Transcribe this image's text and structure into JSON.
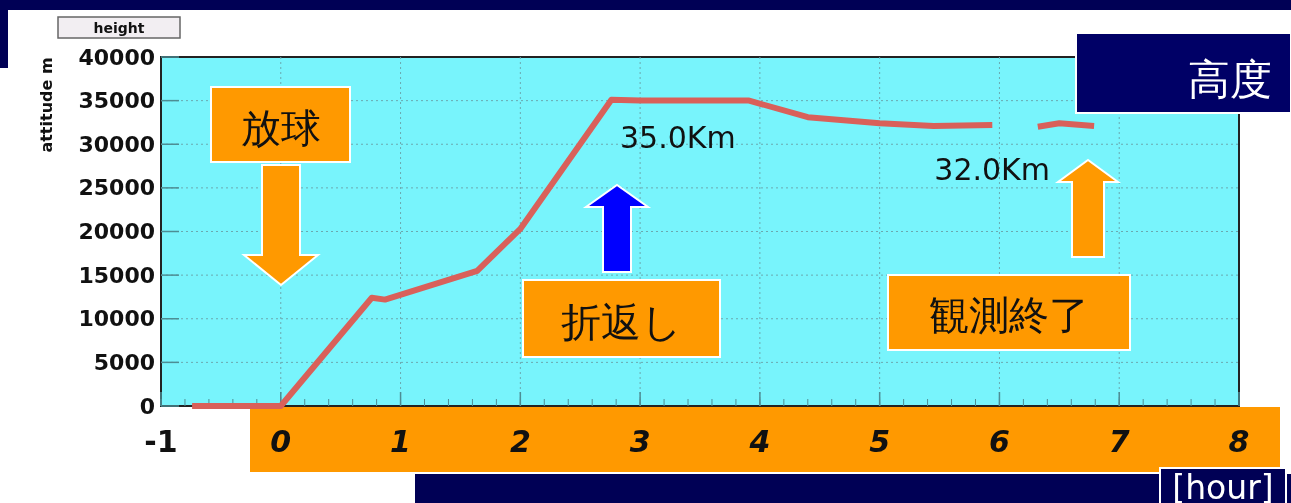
{
  "chart_data": {
    "type": "line",
    "title": "height",
    "ylabel": "attitude m",
    "xlabel": "[hour]",
    "x": [
      -0.74,
      0.0,
      0.76,
      0.87,
      1.64,
      2.0,
      2.76,
      3.0,
      3.91,
      4.4,
      5.0,
      5.45,
      5.94,
      null,
      6.32,
      6.5,
      6.79
    ],
    "values": [
      0,
      0,
      12400,
      12200,
      15500,
      20300,
      35100,
      35000,
      35000,
      33100,
      32400,
      32100,
      32200,
      null,
      32000,
      32400,
      32100
    ],
    "color": "#d9605a",
    "xlim": [
      -1,
      8
    ],
    "ylim": [
      0,
      40000
    ],
    "xticks": [
      {
        "value": -1,
        "label": "-1"
      },
      0,
      1,
      2,
      3,
      4,
      5,
      6,
      7,
      8
    ],
    "yticks": [
      0,
      5000,
      10000,
      15000,
      20000,
      25000,
      30000,
      35000,
      40000
    ],
    "grid": true,
    "annotations": [
      "高度",
      "放球",
      "折返し",
      "35.0Km",
      "観測終了",
      "32.0Km"
    ]
  }
}
